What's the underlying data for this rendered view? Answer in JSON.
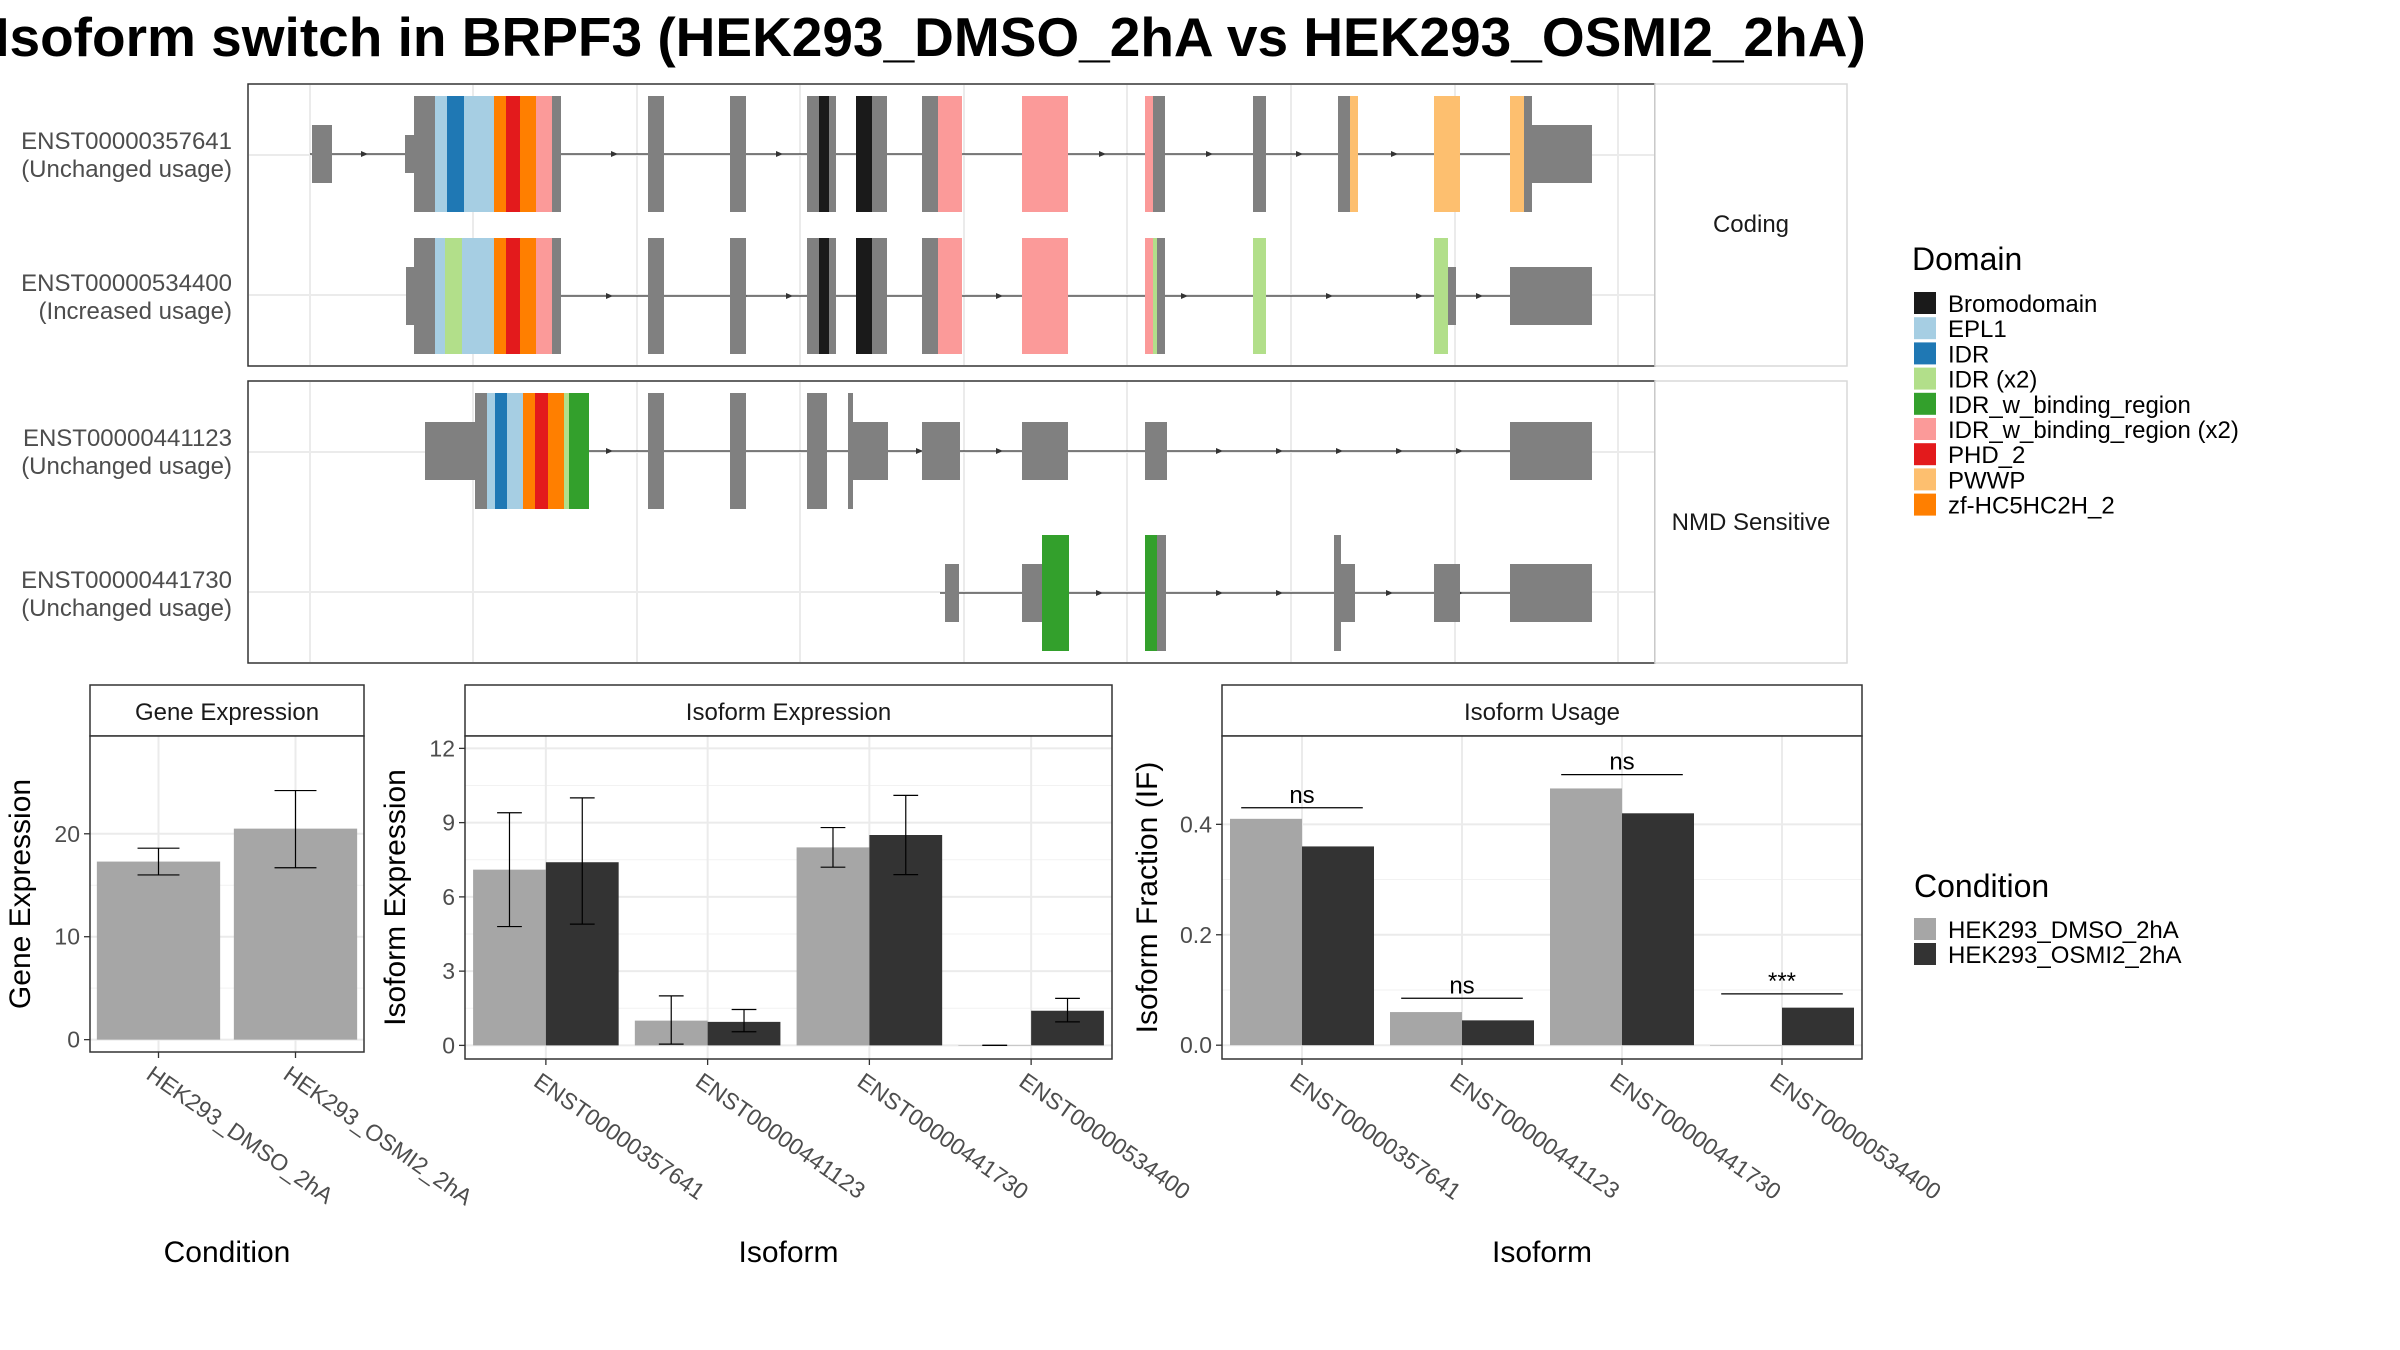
{
  "title": "Isoform switch in BRPF3 (HEK293_DMSO_2hA vs HEK293_OSMI2_2hA)",
  "colors": {
    "intron": "#000000",
    "exon_uncolored": "#808080",
    "cond1": "#a6a6a6",
    "cond2": "#333333",
    "grid": "#ebebeb",
    "panel_border": "#333333",
    "strip_bg": "#ffffff"
  },
  "domain_legend": {
    "title": "Domain",
    "items": [
      {
        "name": "Bromodomain",
        "color": "#1a1a1a"
      },
      {
        "name": "EPL1",
        "color": "#a6cee3"
      },
      {
        "name": "IDR",
        "color": "#1f78b4"
      },
      {
        "name": "IDR (x2)",
        "color": "#b2df8a"
      },
      {
        "name": "IDR_w_binding_region",
        "color": "#33a02c"
      },
      {
        "name": "IDR_w_binding_region (x2)",
        "color": "#fb9a99"
      },
      {
        "name": "PHD_2",
        "color": "#e31a1c"
      },
      {
        "name": "PWWP",
        "color": "#fdbf6f"
      },
      {
        "name": "zf-HC5HC2H_2",
        "color": "#ff7f00"
      }
    ]
  },
  "condition_legend": {
    "title": "Condition",
    "items": [
      {
        "name": "HEK293_DMSO_2hA",
        "color": "#a6a6a6"
      },
      {
        "name": "HEK293_OSMI2_2hA",
        "color": "#333333"
      }
    ]
  },
  "structure": {
    "facets": [
      {
        "label": "Coding",
        "transcripts": [
          {
            "id": "ENST00000357641",
            "usage": "(Unchanged usage)"
          },
          {
            "id": "ENST00000534400",
            "usage": "(Increased usage)"
          }
        ]
      },
      {
        "label": "NMD Sensitive",
        "transcripts": [
          {
            "id": "ENST00000441123",
            "usage": "(Unchanged usage)"
          },
          {
            "id": "ENST00000441730",
            "usage": "(Unchanged usage)"
          }
        ]
      }
    ]
  },
  "chart_data": [
    {
      "type": "bar",
      "title": "Gene Expression",
      "xlabel": "Condition",
      "ylabel": "Gene Expression",
      "ylim": [
        -1.2,
        29.5
      ],
      "yticks": [
        0,
        10,
        20
      ],
      "categories": [
        "HEK293_DMSO_2hA",
        "HEK293_OSMI2_2hA"
      ],
      "values": [
        17.3,
        20.5
      ],
      "error": [
        [
          16.0,
          18.6
        ],
        [
          16.7,
          24.2
        ]
      ]
    },
    {
      "type": "bar",
      "title": "Isoform Expression",
      "xlabel": "Isoform",
      "ylabel": "Isoform Expression",
      "ylim": [
        -0.55,
        12.5
      ],
      "yticks": [
        0,
        3,
        6,
        9,
        12
      ],
      "categories": [
        "ENST00000357641",
        "ENST00000441123",
        "ENST00000441730",
        "ENST00000534400"
      ],
      "series": [
        {
          "name": "HEK293_DMSO_2hA",
          "values": [
            7.1,
            1.0,
            8.0,
            0.0
          ],
          "error": [
            [
              4.8,
              9.4
            ],
            [
              0.05,
              2.0
            ],
            [
              7.2,
              8.8
            ],
            [
              0.0,
              0.0
            ]
          ]
        },
        {
          "name": "HEK293_OSMI2_2hA",
          "values": [
            7.4,
            0.95,
            8.5,
            1.4
          ],
          "error": [
            [
              4.9,
              10.0
            ],
            [
              0.55,
              1.45
            ],
            [
              6.9,
              10.1
            ],
            [
              0.95,
              1.9
            ]
          ]
        }
      ]
    },
    {
      "type": "bar",
      "title": "Isoform Usage",
      "xlabel": "Isoform",
      "ylabel": "Isoform Fraction (IF)",
      "ylim": [
        -0.025,
        0.56
      ],
      "yticks": [
        0.0,
        0.2,
        0.4
      ],
      "ytick_labels": [
        "0.0",
        "0.2",
        "0.4"
      ],
      "categories": [
        "ENST00000357641",
        "ENST00000441123",
        "ENST00000441730",
        "ENST00000534400"
      ],
      "series": [
        {
          "name": "HEK293_DMSO_2hA",
          "values": [
            0.41,
            0.06,
            0.465,
            0.0
          ]
        },
        {
          "name": "HEK293_OSMI2_2hA",
          "values": [
            0.36,
            0.045,
            0.42,
            0.068
          ]
        }
      ],
      "significance": [
        "ns",
        "ns",
        "ns",
        "***"
      ],
      "significance_y": [
        0.43,
        0.085,
        0.49,
        0.093
      ]
    }
  ]
}
